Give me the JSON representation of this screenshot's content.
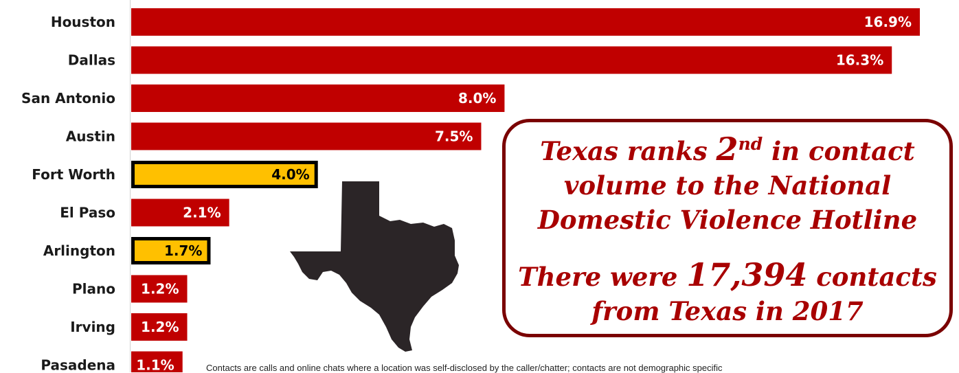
{
  "colors": {
    "bar_default": "#c00000",
    "bar_highlight": "#ffc000",
    "highlight_border": "#000000",
    "callout_text": "#a80000",
    "callout_border": "#7a0000",
    "map_fill": "#2b2527"
  },
  "chart_data": {
    "type": "bar",
    "orientation": "horizontal",
    "categories": [
      "Houston",
      "Dallas",
      "San Antonio",
      "Austin",
      "Fort Worth",
      "El Paso",
      "Arlington",
      "Plano",
      "Irving",
      "Pasadena"
    ],
    "values": [
      16.9,
      16.3,
      8.0,
      7.5,
      4.0,
      2.1,
      1.7,
      1.2,
      1.2,
      1.1
    ],
    "value_labels": [
      "16.9%",
      "16.3%",
      "8.0%",
      "7.5%",
      "4.0%",
      "2.1%",
      "1.7%",
      "1.2%",
      "1.2%",
      "1.1%"
    ],
    "highlighted": [
      "Fort Worth",
      "Arlington"
    ],
    "unit": "%",
    "xlim": [
      0,
      17.4
    ],
    "axes_visible": false,
    "grid": false,
    "legend": "none"
  },
  "callout": {
    "line1_a": "Texas ranks ",
    "line1_big": "2",
    "line1_sup": "nd",
    "line1_b": " in contact volume to the National Domestic Violence Hotline",
    "line2_a": "There were ",
    "line2_big": "17,394",
    "line2_b": " contacts from Texas in 2017"
  },
  "footnote": "Contacts are calls and online chats where a location was self-disclosed by the caller/chatter; contacts are not demographic specific",
  "map_icon": "texas-state-silhouette"
}
